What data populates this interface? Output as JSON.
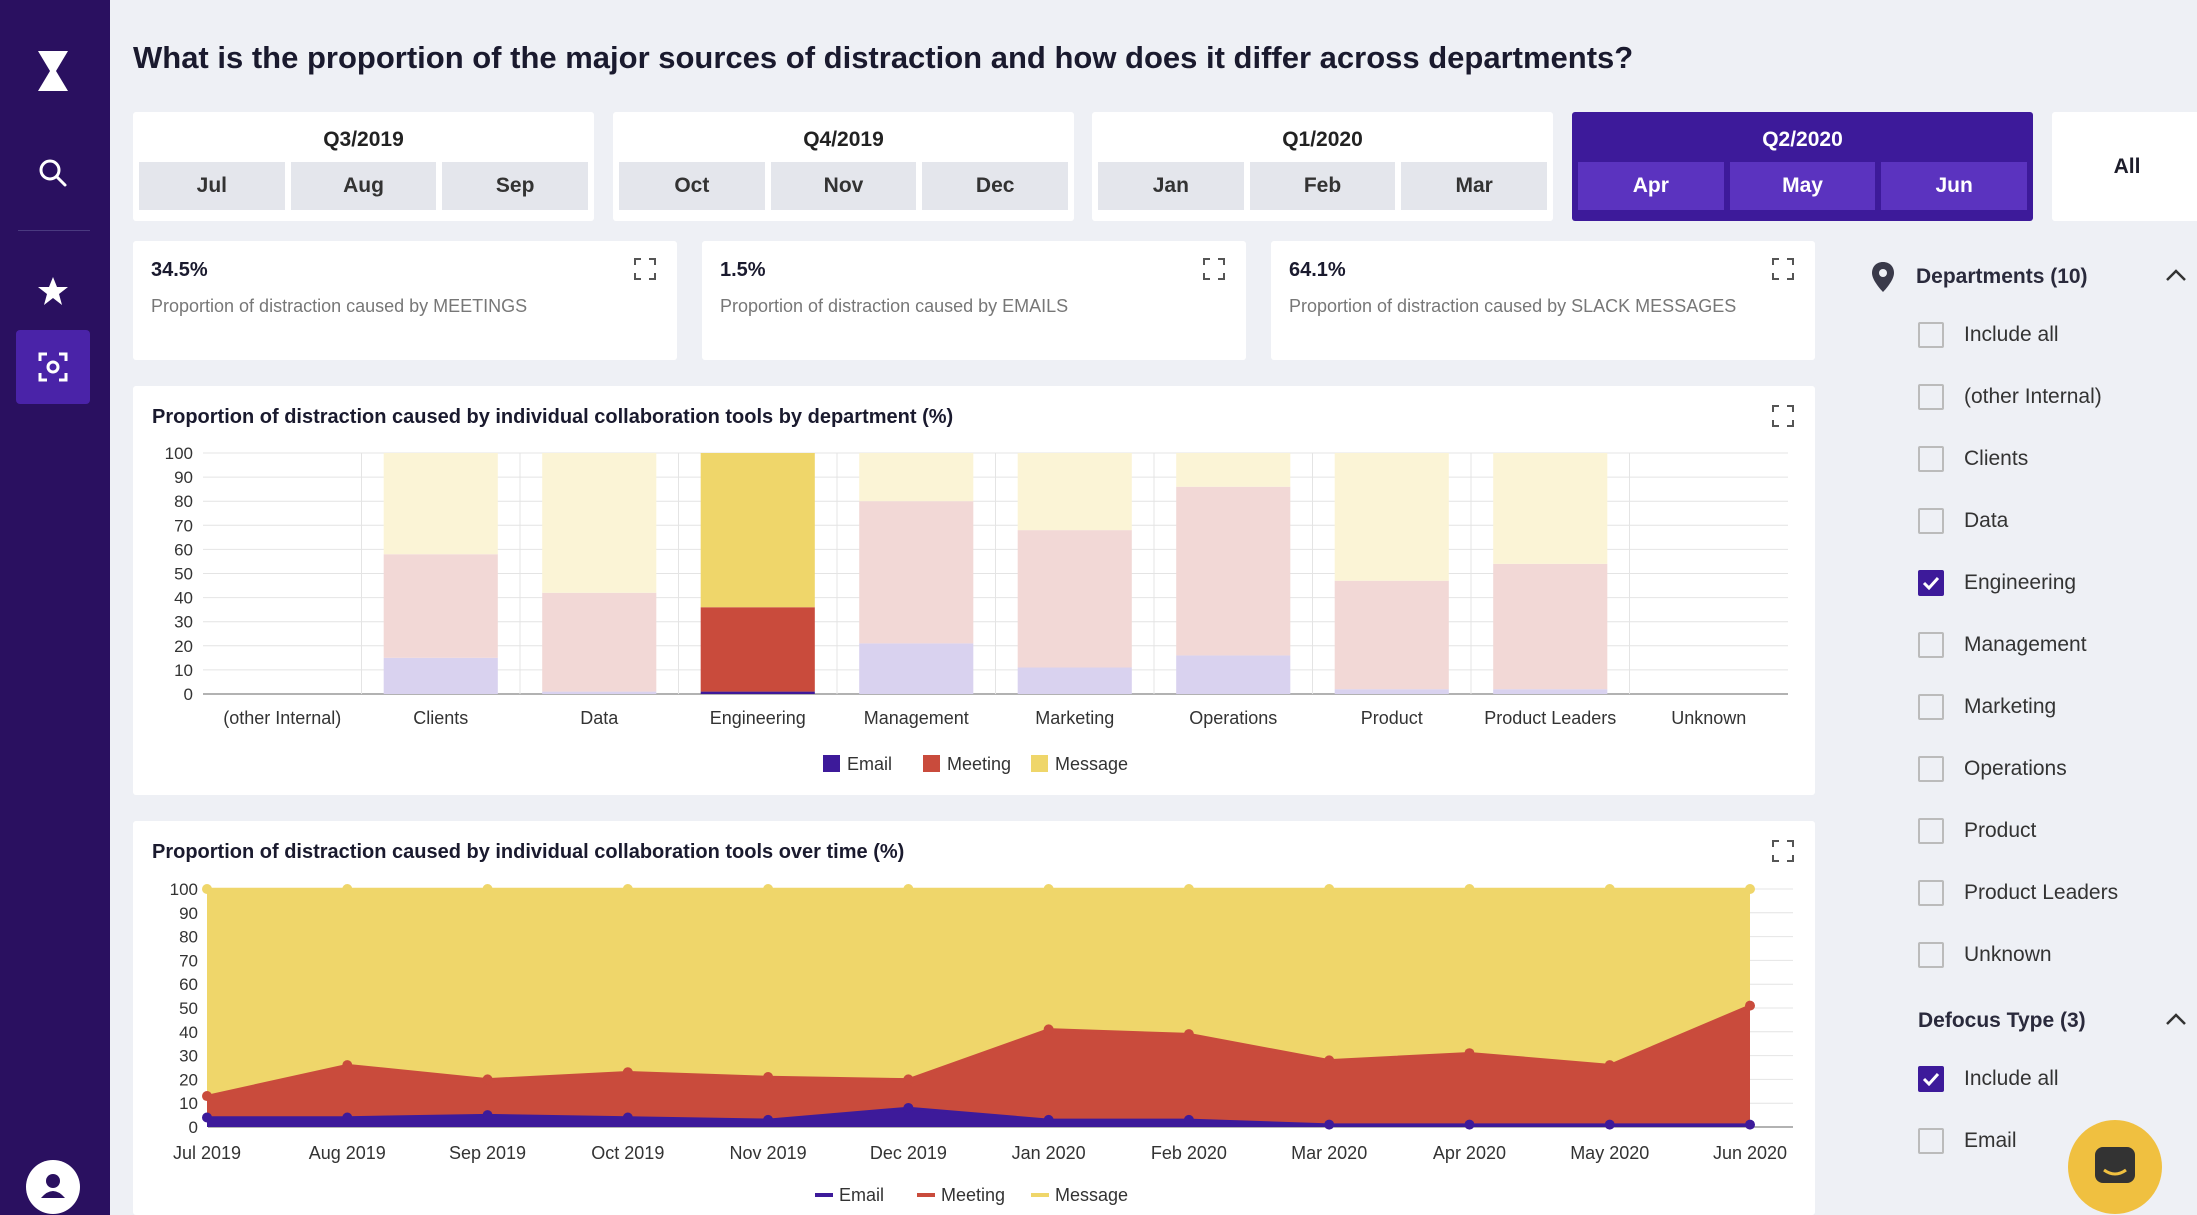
{
  "header": {
    "title": "What is the proportion of the major sources of distraction and how does it differ across departments?"
  },
  "sidebar": {
    "items": [
      "logo-icon",
      "search-icon",
      "star-icon",
      "focus-icon",
      "user-icon"
    ]
  },
  "period": {
    "quarters": [
      {
        "label": "Q3/2019",
        "months": [
          "Jul",
          "Aug",
          "Sep"
        ],
        "active": false
      },
      {
        "label": "Q4/2019",
        "months": [
          "Oct",
          "Nov",
          "Dec"
        ],
        "active": false
      },
      {
        "label": "Q1/2020",
        "months": [
          "Jan",
          "Feb",
          "Mar"
        ],
        "active": false
      },
      {
        "label": "Q2/2020",
        "months": [
          "Apr",
          "May",
          "Jun"
        ],
        "active": true
      }
    ],
    "all_label": "All"
  },
  "kpis": [
    {
      "value": "34.5%",
      "desc": "Proportion of distraction caused by MEETINGS"
    },
    {
      "value": "1.5%",
      "desc": "Proportion of distraction caused by EMAILS"
    },
    {
      "value": "64.1%",
      "desc": "Proportion of distraction caused by SLACK MESSAGES"
    }
  ],
  "colors": {
    "email": "#3d1a9a",
    "meeting": "#c94b3c",
    "message": "#efd66a",
    "email_faded": "#d9d2ef",
    "meeting_faded": "#f2d8d6",
    "message_faded": "#fbf4d6"
  },
  "chart_data": [
    {
      "type": "bar",
      "title": "Proportion of distraction caused by individual collaboration tools by department (%)",
      "categories": [
        "(other Internal)",
        "Clients",
        "Data",
        "Engineering",
        "Management",
        "Marketing",
        "Operations",
        "Product",
        "Product Leaders",
        "Unknown"
      ],
      "series": [
        {
          "name": "Email",
          "values": [
            0,
            15,
            1,
            1,
            21,
            11,
            16,
            2,
            2,
            0
          ]
        },
        {
          "name": "Meeting",
          "values": [
            0,
            43,
            41,
            35,
            59,
            57,
            70,
            45,
            52,
            0
          ]
        },
        {
          "name": "Message",
          "values": [
            0,
            42,
            58,
            64,
            20,
            32,
            14,
            53,
            46,
            0
          ]
        }
      ],
      "highlighted": "Engineering",
      "stacked": true,
      "ylim": [
        0,
        100
      ],
      "yticks": [
        0,
        10,
        20,
        30,
        40,
        50,
        60,
        70,
        80,
        90,
        100
      ],
      "legend": [
        "Email",
        "Meeting",
        "Message"
      ]
    },
    {
      "type": "area",
      "title": "Proportion of distraction caused by individual collaboration tools over time (%)",
      "x": [
        "Jul 2019",
        "Aug 2019",
        "Sep 2019",
        "Oct 2019",
        "Nov 2019",
        "Dec 2019",
        "Jan 2020",
        "Feb 2020",
        "Mar 2020",
        "Apr 2020",
        "May 2020",
        "Jun 2020"
      ],
      "series": [
        {
          "name": "Email",
          "values": [
            4,
            4,
            5,
            4,
            3,
            8,
            3,
            3,
            1,
            1,
            1,
            1
          ]
        },
        {
          "name": "Meeting",
          "values": [
            9,
            22,
            15,
            19,
            18,
            12,
            38,
            36,
            27,
            30,
            25,
            50
          ]
        },
        {
          "name": "Message",
          "values": [
            87,
            74,
            80,
            77,
            79,
            80,
            59,
            61,
            72,
            69,
            74,
            49
          ]
        }
      ],
      "stacked": true,
      "ylim": [
        0,
        100
      ],
      "yticks": [
        0,
        10,
        20,
        30,
        40,
        50,
        60,
        70,
        80,
        90,
        100
      ],
      "legend": [
        "Email",
        "Meeting",
        "Message"
      ]
    }
  ],
  "filters": {
    "departments": {
      "title": "Departments (10)",
      "items": [
        {
          "label": "Include all",
          "checked": false
        },
        {
          "label": "(other Internal)",
          "checked": false
        },
        {
          "label": "Clients",
          "checked": false
        },
        {
          "label": "Data",
          "checked": false
        },
        {
          "label": "Engineering",
          "checked": true
        },
        {
          "label": "Management",
          "checked": false
        },
        {
          "label": "Marketing",
          "checked": false
        },
        {
          "label": "Operations",
          "checked": false
        },
        {
          "label": "Product",
          "checked": false
        },
        {
          "label": "Product Leaders",
          "checked": false
        },
        {
          "label": "Unknown",
          "checked": false
        }
      ]
    },
    "defocus": {
      "title": "Defocus Type (3)",
      "items": [
        {
          "label": "Include all",
          "checked": true
        },
        {
          "label": "Email",
          "checked": false
        }
      ]
    }
  }
}
